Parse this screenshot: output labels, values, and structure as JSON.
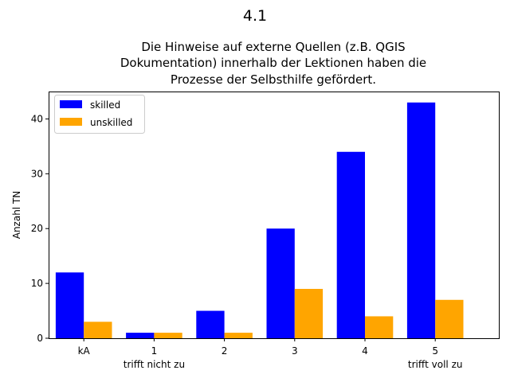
{
  "figure": {
    "suptitle": "4.1",
    "title_lines": [
      "Die Hinweise auf externe Quellen (z.B. QGIS",
      "Dokumentation) innerhalb der Lektionen haben die",
      "Prozesse der Selbsthilfe gefördert."
    ]
  },
  "chart_data": {
    "type": "bar",
    "title": "Die Hinweise auf externe Quellen (z.B. QGIS Dokumentation) innerhalb der Lektionen haben die Prozesse der Selbsthilfe gefördert.",
    "categories": [
      "kA",
      "1",
      "2",
      "3",
      "4",
      "5"
    ],
    "category_sublabels": [
      "",
      "trifft nicht zu",
      "",
      "",
      "",
      "trifft voll zu"
    ],
    "series": [
      {
        "name": "skilled",
        "color": "#0000ff",
        "values": [
          12,
          1,
          5,
          20,
          34,
          43
        ]
      },
      {
        "name": "unskilled",
        "color": "#ffa500",
        "values": [
          3,
          1,
          1,
          9,
          4,
          7
        ]
      }
    ],
    "xlabel": "",
    "ylabel": "Anzahl TN",
    "ylim": [
      0,
      45
    ],
    "yticks": [
      0,
      10,
      20,
      30,
      40
    ],
    "grid": false,
    "legend_position": "upper-left"
  }
}
